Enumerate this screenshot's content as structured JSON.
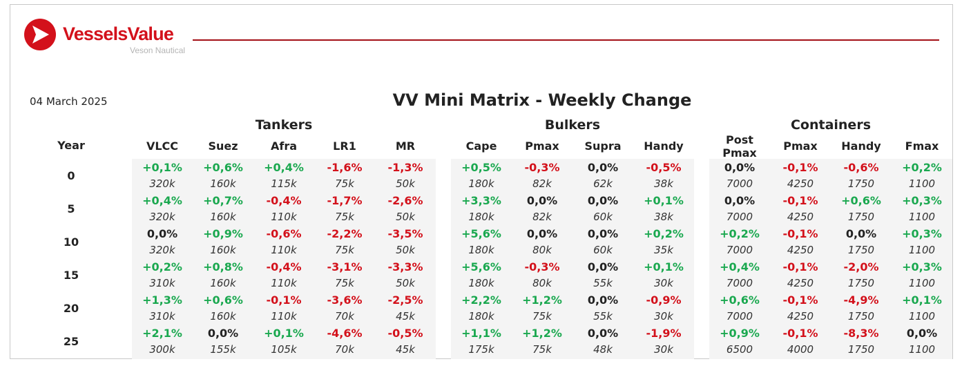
{
  "brand": {
    "name": "VesselsValue",
    "tagline": "Veson Nautical",
    "color": "#d3111b"
  },
  "report": {
    "date": "04 March 2025",
    "title": "VV Mini Matrix - Weekly Change"
  },
  "groups": [
    {
      "name": "Tankers",
      "columns": [
        "VLCC",
        "Suez",
        "Afra",
        "LR1",
        "MR"
      ]
    },
    {
      "name": "Bulkers",
      "columns": [
        "Cape",
        "Pmax",
        "Supra",
        "Handy"
      ]
    },
    {
      "name": "Containers",
      "columns": [
        "Post Pmax",
        "Pmax",
        "Handy",
        "Fmax"
      ]
    }
  ],
  "year_header": "Year",
  "rows": [
    {
      "year": "0",
      "changes": [
        "+0,1%",
        "+0,6%",
        "+0,4%",
        "-1,6%",
        "-1,3%",
        "+0,5%",
        "-0,3%",
        "0,0%",
        "-0,5%",
        "0,0%",
        "-0,1%",
        "-0,6%",
        "+0,2%"
      ],
      "values": [
        "320k",
        "160k",
        "115k",
        "75k",
        "50k",
        "180k",
        "82k",
        "62k",
        "38k",
        "7000",
        "4250",
        "1750",
        "1100"
      ]
    },
    {
      "year": "5",
      "changes": [
        "+0,4%",
        "+0,7%",
        "-0,4%",
        "-1,7%",
        "-2,6%",
        "+3,3%",
        "0,0%",
        "0,0%",
        "+0,1%",
        "0,0%",
        "-0,1%",
        "+0,6%",
        "+0,3%"
      ],
      "values": [
        "320k",
        "160k",
        "110k",
        "75k",
        "50k",
        "180k",
        "82k",
        "60k",
        "38k",
        "7000",
        "4250",
        "1750",
        "1100"
      ]
    },
    {
      "year": "10",
      "changes": [
        "0,0%",
        "+0,9%",
        "-0,6%",
        "-2,2%",
        "-3,5%",
        "+5,6%",
        "0,0%",
        "0,0%",
        "+0,2%",
        "+0,2%",
        "-0,1%",
        "0,0%",
        "+0,3%"
      ],
      "values": [
        "320k",
        "160k",
        "110k",
        "75k",
        "50k",
        "180k",
        "80k",
        "60k",
        "35k",
        "7000",
        "4250",
        "1750",
        "1100"
      ]
    },
    {
      "year": "15",
      "changes": [
        "+0,2%",
        "+0,8%",
        "-0,4%",
        "-3,1%",
        "-3,3%",
        "+5,6%",
        "-0,3%",
        "0,0%",
        "+0,1%",
        "+0,4%",
        "-0,1%",
        "-2,0%",
        "+0,3%"
      ],
      "values": [
        "310k",
        "160k",
        "110k",
        "75k",
        "50k",
        "180k",
        "80k",
        "55k",
        "30k",
        "7000",
        "4250",
        "1750",
        "1100"
      ]
    },
    {
      "year": "20",
      "changes": [
        "+1,3%",
        "+0,6%",
        "-0,1%",
        "-3,6%",
        "-2,5%",
        "+2,2%",
        "+1,2%",
        "0,0%",
        "-0,9%",
        "+0,6%",
        "-0,1%",
        "-4,9%",
        "+0,1%"
      ],
      "values": [
        "310k",
        "160k",
        "110k",
        "70k",
        "45k",
        "180k",
        "75k",
        "55k",
        "30k",
        "7000",
        "4250",
        "1750",
        "1100"
      ]
    },
    {
      "year": "25",
      "changes": [
        "+2,1%",
        "0,0%",
        "+0,1%",
        "-4,6%",
        "-0,5%",
        "+1,1%",
        "+1,2%",
        "0,0%",
        "-1,9%",
        "+0,9%",
        "-0,1%",
        "-8,3%",
        "0,0%"
      ],
      "values": [
        "300k",
        "155k",
        "105k",
        "70k",
        "45k",
        "175k",
        "75k",
        "48k",
        "30k",
        "6500",
        "4000",
        "1750",
        "1100"
      ]
    }
  ],
  "colors": {
    "positive": "#1aa84f",
    "negative": "#d3111b",
    "neutral": "#222222"
  }
}
